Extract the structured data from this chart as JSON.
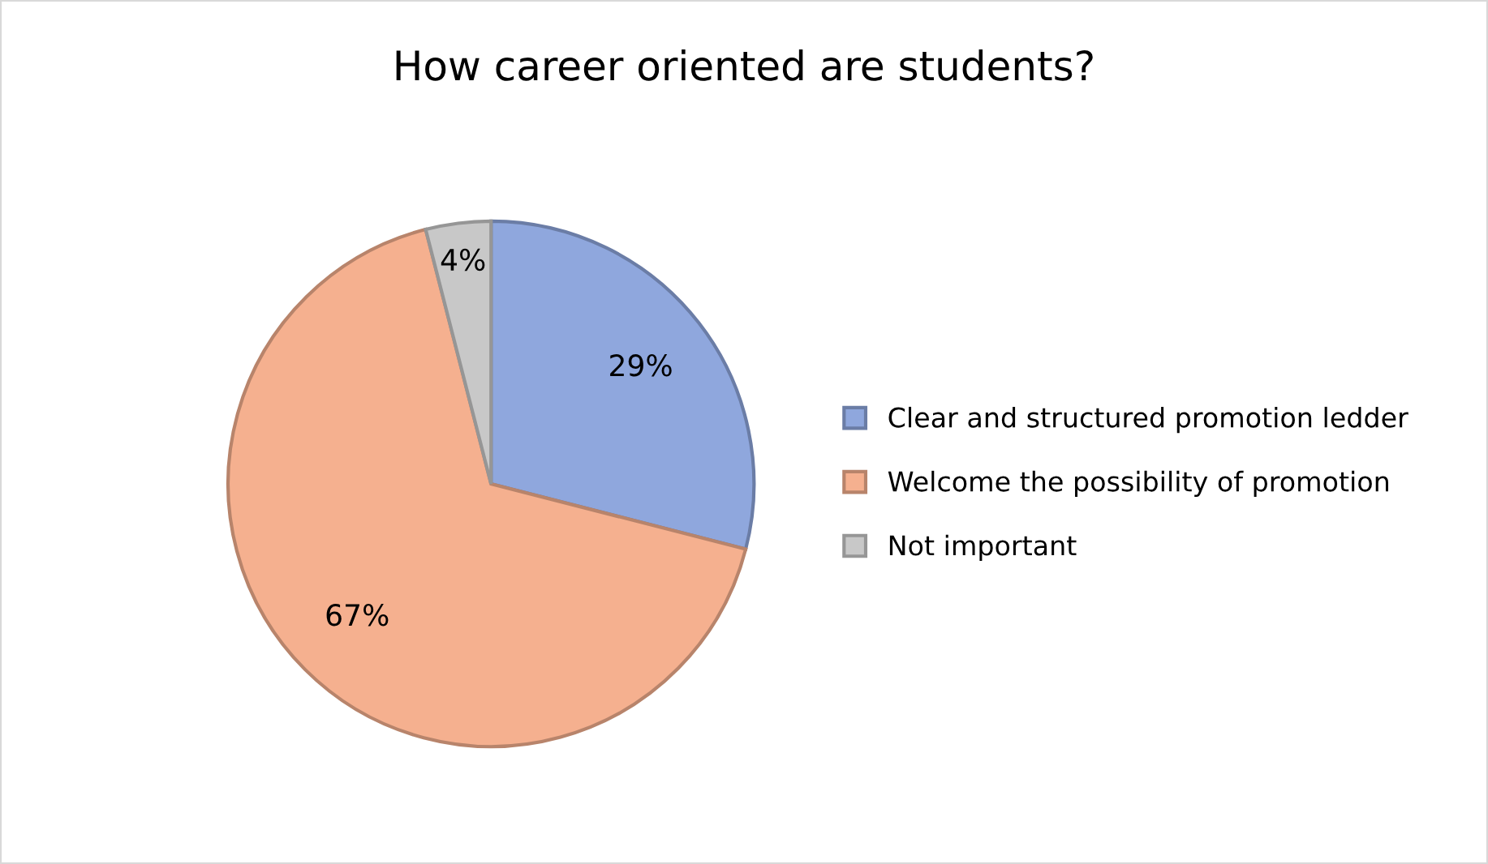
{
  "chart_data": {
    "type": "pie",
    "title": "How career oriented are students?",
    "categories": [
      "Clear and structured promotion ledder",
      "Welcome the possibility of promotion",
      "Not important"
    ],
    "values": [
      29,
      67,
      4
    ],
    "colors": [
      "#8fa7dd",
      "#f5b08f",
      "#c8c8c8"
    ],
    "value_labels": [
      "29%",
      "67%",
      "4%"
    ],
    "legend": "right"
  }
}
